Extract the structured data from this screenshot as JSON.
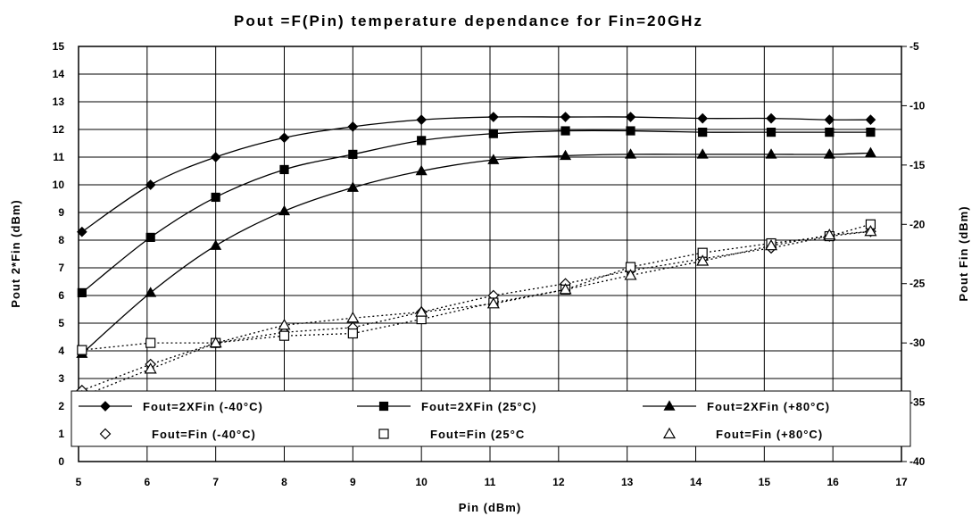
{
  "chart_data": {
    "type": "line",
    "title": "Pout =F(Pin)  temperature dependance for Fin=20GHz",
    "xlabel": "Pin (dBm)",
    "ylabel": "Pout 2*Fin (dBm)",
    "y2label": "Pout Fin (dBm)",
    "xlim": [
      5,
      17
    ],
    "ylim": [
      0,
      15
    ],
    "y2lim": [
      -40,
      -5
    ],
    "xticks": [
      "5",
      "6",
      "7",
      "8",
      "9",
      "10",
      "11",
      "12",
      "13",
      "14",
      "15",
      "16",
      "17"
    ],
    "yticks": [
      "0",
      "1",
      "2",
      "3",
      "4",
      "5",
      "6",
      "7",
      "8",
      "9",
      "10",
      "11",
      "12",
      "13",
      "14",
      "15"
    ],
    "y2ticks": [
      "-40",
      "-35",
      "-30",
      "-25",
      "-20",
      "-15",
      "-10",
      "-5"
    ],
    "grid": true,
    "legend_position": "bottom",
    "series": [
      {
        "name": "Fout=2XFin (-40°C)",
        "axis": "left",
        "marker": "filled-diamond",
        "line": "solid",
        "color": "#000000",
        "x": [
          5.05,
          6.05,
          7.0,
          8.0,
          9.0,
          10.0,
          11.05,
          12.1,
          13.05,
          14.1,
          15.1,
          15.95,
          16.55
        ],
        "y": [
          8.3,
          10.0,
          11.0,
          11.7,
          12.1,
          12.35,
          12.45,
          12.45,
          12.45,
          12.4,
          12.4,
          12.35,
          12.35
        ]
      },
      {
        "name": "Fout=2XFin (25°C)",
        "axis": "left",
        "marker": "filled-square",
        "line": "solid",
        "color": "#000000",
        "x": [
          5.05,
          6.05,
          7.0,
          8.0,
          9.0,
          10.0,
          11.05,
          12.1,
          13.05,
          14.1,
          15.1,
          15.95,
          16.55
        ],
        "y": [
          6.1,
          8.1,
          9.55,
          10.55,
          11.1,
          11.6,
          11.85,
          11.95,
          11.95,
          11.9,
          11.9,
          11.9,
          11.9
        ]
      },
      {
        "name": "Fout=2XFin (+80°C)",
        "axis": "left",
        "marker": "filled-triangle",
        "line": "solid",
        "color": "#000000",
        "x": [
          5.05,
          6.05,
          7.0,
          8.0,
          9.0,
          10.0,
          11.05,
          12.1,
          13.05,
          14.1,
          15.1,
          15.95,
          16.55
        ],
        "y": [
          3.9,
          6.1,
          7.8,
          9.05,
          9.9,
          10.5,
          10.9,
          11.05,
          11.1,
          11.1,
          11.1,
          11.1,
          11.15
        ]
      },
      {
        "name": "Fout=Fin (-40°C)",
        "axis": "right",
        "marker": "open-diamond",
        "line": "dotted",
        "color": "#000000",
        "x": [
          5.05,
          6.05,
          7.0,
          8.0,
          9.0,
          10.0,
          11.05,
          12.1,
          13.05,
          14.1,
          15.1,
          15.95,
          16.55
        ],
        "y": [
          -34.0,
          -31.8,
          -30.0,
          -29.1,
          -28.7,
          -27.4,
          -26.0,
          -25.0,
          -23.9,
          -22.9,
          -22.0,
          -21.0,
          -20.6
        ]
      },
      {
        "name": "Fout=Fin (25°C",
        "axis": "right",
        "marker": "open-square",
        "line": "dotted",
        "color": "#000000",
        "x": [
          5.05,
          6.05,
          7.0,
          8.0,
          9.0,
          10.0,
          11.05,
          12.1,
          13.05,
          14.1,
          15.1,
          15.95,
          16.55
        ],
        "y": [
          -30.6,
          -30.0,
          -30.0,
          -29.4,
          -29.2,
          -28.0,
          -26.6,
          -25.5,
          -23.6,
          -22.4,
          -21.6,
          -21.0,
          -20.0
        ]
      },
      {
        "name": "Fout=Fin (+80°C)",
        "axis": "right",
        "marker": "open-triangle",
        "line": "dotted",
        "color": "#000000",
        "x": [
          5.05,
          6.05,
          7.0,
          8.0,
          9.0,
          10.0,
          11.05,
          12.1,
          13.05,
          14.1,
          15.1,
          15.95,
          16.55
        ],
        "y": [
          -34.5,
          -32.2,
          -30.0,
          -28.5,
          -27.9,
          -27.4,
          -26.7,
          -25.5,
          -24.3,
          -23.1,
          -21.8,
          -20.9,
          -20.6
        ]
      }
    ]
  }
}
